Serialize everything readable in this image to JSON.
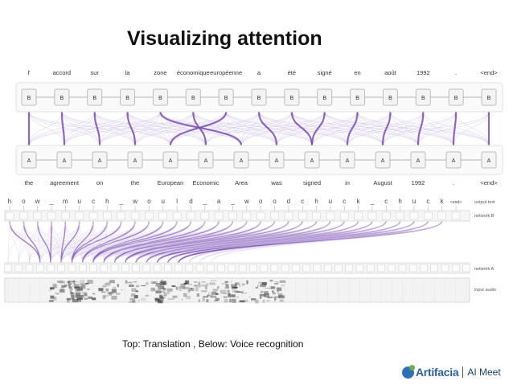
{
  "slide": {
    "title": "Visualizing attention",
    "caption": "Top: Translation , Below: Voice recognition"
  },
  "translation": {
    "target_words": [
      "l'",
      "accord",
      "sur",
      "la",
      "zone",
      "économique",
      "européenne",
      "a",
      "été",
      "signé",
      "en",
      "août",
      "1992",
      ".",
      "<end>"
    ],
    "source_words": [
      "the",
      "agreement",
      "on",
      "the",
      "European",
      "Economic",
      "Area",
      "was",
      "signed",
      "in",
      "August",
      "1992",
      ".",
      "<end>"
    ],
    "decoder_label": "B",
    "encoder_label": "A",
    "attention_pairs": [
      [
        0,
        0
      ],
      [
        1,
        1
      ],
      [
        2,
        2
      ],
      [
        3,
        3
      ],
      [
        4,
        6
      ],
      [
        5,
        5
      ],
      [
        6,
        4
      ],
      [
        7,
        7
      ],
      [
        8,
        8
      ],
      [
        9,
        8
      ],
      [
        10,
        9
      ],
      [
        11,
        10
      ],
      [
        12,
        11
      ],
      [
        13,
        12
      ],
      [
        14,
        13
      ]
    ]
  },
  "speech": {
    "output_characters": [
      "h",
      "o",
      "w",
      "_",
      "m",
      "u",
      "c",
      "h",
      "_",
      "w",
      "o",
      "u",
      "l",
      "d",
      "_",
      "a",
      "_",
      "w",
      "o",
      "o",
      "d",
      "c",
      "h",
      "u",
      "c",
      "k",
      "_",
      "c",
      "h",
      "u",
      "c",
      "k",
      "<end>"
    ],
    "labels": [
      "output text",
      "network B",
      "network A",
      "input audio"
    ]
  },
  "logo": {
    "name": "Artifacia",
    "sub": "AI Meet"
  },
  "colors": {
    "attention": "#7b4fb0",
    "attention_light": "#cdbde6",
    "cell_fill": "#f4f4f4",
    "cell_border": "#bdbdbd"
  }
}
